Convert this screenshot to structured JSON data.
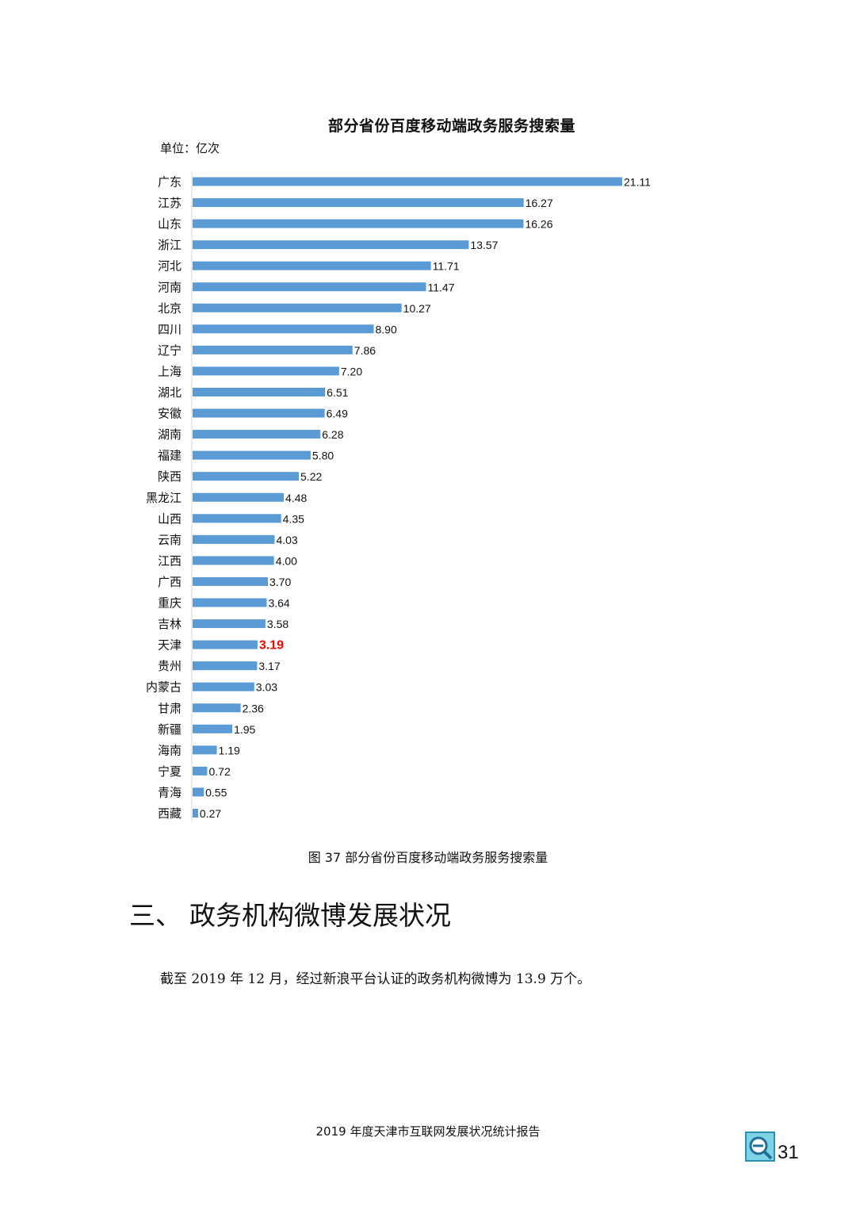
{
  "chart_data": {
    "type": "bar",
    "orientation": "horizontal",
    "title": "部分省份百度移动端政务服务搜索量",
    "unit": "单位：亿次",
    "categories": [
      "广东",
      "江苏",
      "山东",
      "浙江",
      "河北",
      "河南",
      "北京",
      "四川",
      "辽宁",
      "上海",
      "湖北",
      "安徽",
      "湖南",
      "福建",
      "陕西",
      "黑龙江",
      "山西",
      "云南",
      "江西",
      "广西",
      "重庆",
      "吉林",
      "天津",
      "贵州",
      "内蒙古",
      "甘肃",
      "新疆",
      "海南",
      "宁夏",
      "青海",
      "西藏"
    ],
    "values": [
      21.11,
      16.27,
      16.26,
      13.57,
      11.71,
      11.47,
      10.27,
      8.9,
      7.86,
      7.2,
      6.51,
      6.49,
      6.28,
      5.8,
      5.22,
      4.48,
      4.35,
      4.03,
      4.0,
      3.7,
      3.64,
      3.58,
      3.19,
      3.17,
      3.03,
      2.36,
      1.95,
      1.19,
      0.72,
      0.55,
      0.27
    ],
    "value_labels": [
      "21.11",
      "16.27",
      "16.26",
      "13.57",
      "11.71",
      "11.47",
      "10.27",
      "8.90",
      "7.86",
      "7.20",
      "6.51",
      "6.49",
      "6.28",
      "5.80",
      "5.22",
      "4.48",
      "4.35",
      "4.03",
      "4.00",
      "3.70",
      "3.64",
      "3.58",
      "3.19",
      "3.17",
      "3.03",
      "2.36",
      "1.95",
      "1.19",
      "0.72",
      "0.55",
      "0.27"
    ],
    "highlight": "天津",
    "bar_color": "#5b9bd5",
    "highlight_label_color": "#ff0000"
  },
  "caption": "图  37  部分省份百度移动端政务服务搜索量",
  "section": {
    "number": "三、",
    "title": "政务机构微博发展状况"
  },
  "body_text": "截至 2019 年 12 月，经过新浪平台认证的政务机构微博为 13.9 万个。",
  "footer": {
    "report_title": "2019 年度天津市互联网发展状况统计报告",
    "page_number": "31"
  }
}
